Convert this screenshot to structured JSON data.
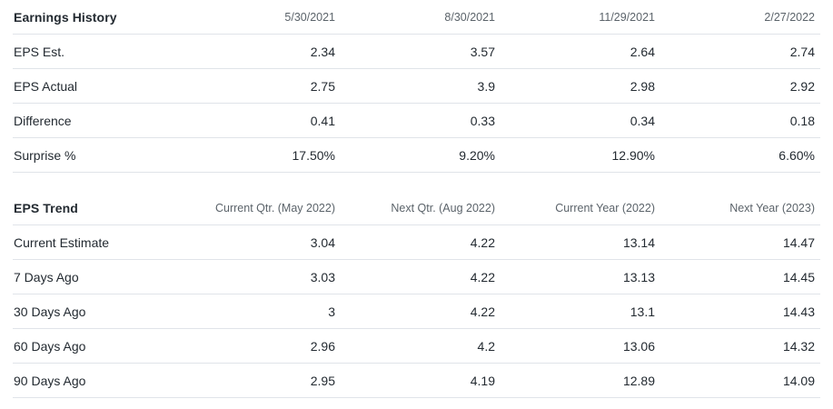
{
  "colors": {
    "background": "#ffffff",
    "text_primary": "#232a31",
    "text_secondary": "#5b636a",
    "divider": "#e0e4e9"
  },
  "tables": [
    {
      "title": "Earnings History",
      "columns": [
        "5/30/2021",
        "8/30/2021",
        "11/29/2021",
        "2/27/2022"
      ],
      "rows": [
        {
          "label": "EPS Est.",
          "values": [
            "2.34",
            "3.57",
            "2.64",
            "2.74"
          ]
        },
        {
          "label": "EPS Actual",
          "values": [
            "2.75",
            "3.9",
            "2.98",
            "2.92"
          ]
        },
        {
          "label": "Difference",
          "values": [
            "0.41",
            "0.33",
            "0.34",
            "0.18"
          ]
        },
        {
          "label": "Surprise %",
          "values": [
            "17.50%",
            "9.20%",
            "12.90%",
            "6.60%"
          ]
        }
      ]
    },
    {
      "title": "EPS Trend",
      "columns": [
        "Current Qtr. (May 2022)",
        "Next Qtr. (Aug 2022)",
        "Current Year (2022)",
        "Next Year (2023)"
      ],
      "rows": [
        {
          "label": "Current Estimate",
          "values": [
            "3.04",
            "4.22",
            "13.14",
            "14.47"
          ]
        },
        {
          "label": "7 Days Ago",
          "values": [
            "3.03",
            "4.22",
            "13.13",
            "14.45"
          ]
        },
        {
          "label": "30 Days Ago",
          "values": [
            "3",
            "4.22",
            "13.1",
            "14.43"
          ]
        },
        {
          "label": "60 Days Ago",
          "values": [
            "2.96",
            "4.2",
            "13.06",
            "14.32"
          ]
        },
        {
          "label": "90 Days Ago",
          "values": [
            "2.95",
            "4.19",
            "12.89",
            "14.09"
          ]
        }
      ]
    }
  ]
}
